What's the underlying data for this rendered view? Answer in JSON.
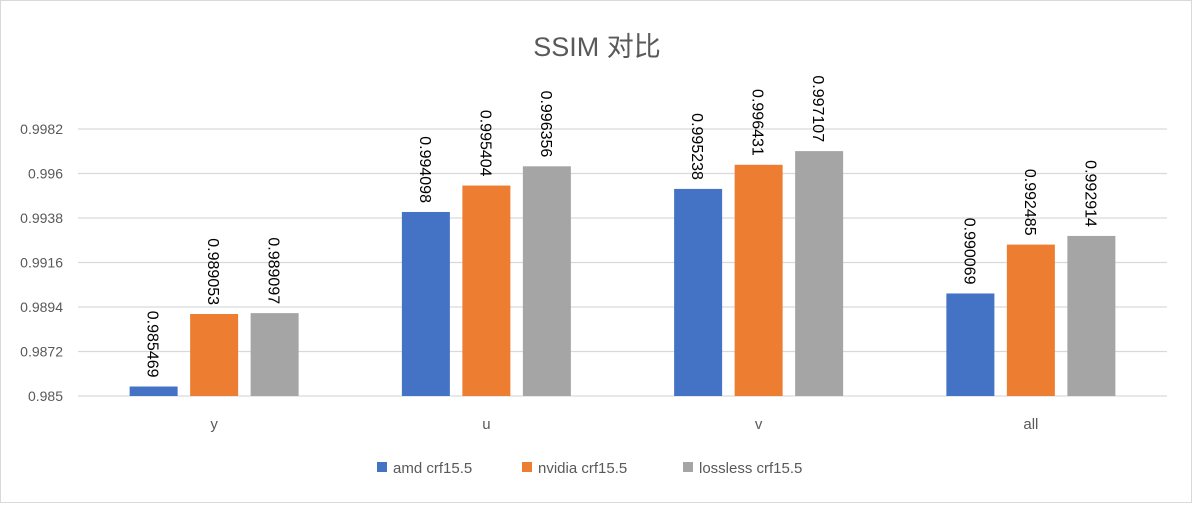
{
  "chart_data": {
    "type": "bar",
    "title": "SSIM 对比",
    "xlabel": "",
    "ylabel": "",
    "categories": [
      "y",
      "u",
      "v",
      "all"
    ],
    "series": [
      {
        "name": "amd crf15.5",
        "color": "#4472c4",
        "values": [
          0.985469,
          0.994098,
          0.995238,
          0.990069
        ]
      },
      {
        "name": "nvidia crf15.5",
        "color": "#ed7d31",
        "values": [
          0.989053,
          0.995404,
          0.996431,
          0.992485
        ]
      },
      {
        "name": "lossless crf15.5",
        "color": "#a5a5a5",
        "values": [
          0.989097,
          0.996356,
          0.997107,
          0.992914
        ]
      }
    ],
    "ylim": [
      0.985,
      0.9982
    ],
    "yticks": [
      "0.985",
      "0.9872",
      "0.9894",
      "0.9916",
      "0.9938",
      "0.996",
      "0.9982"
    ],
    "grid": true,
    "legend": "bottom"
  }
}
